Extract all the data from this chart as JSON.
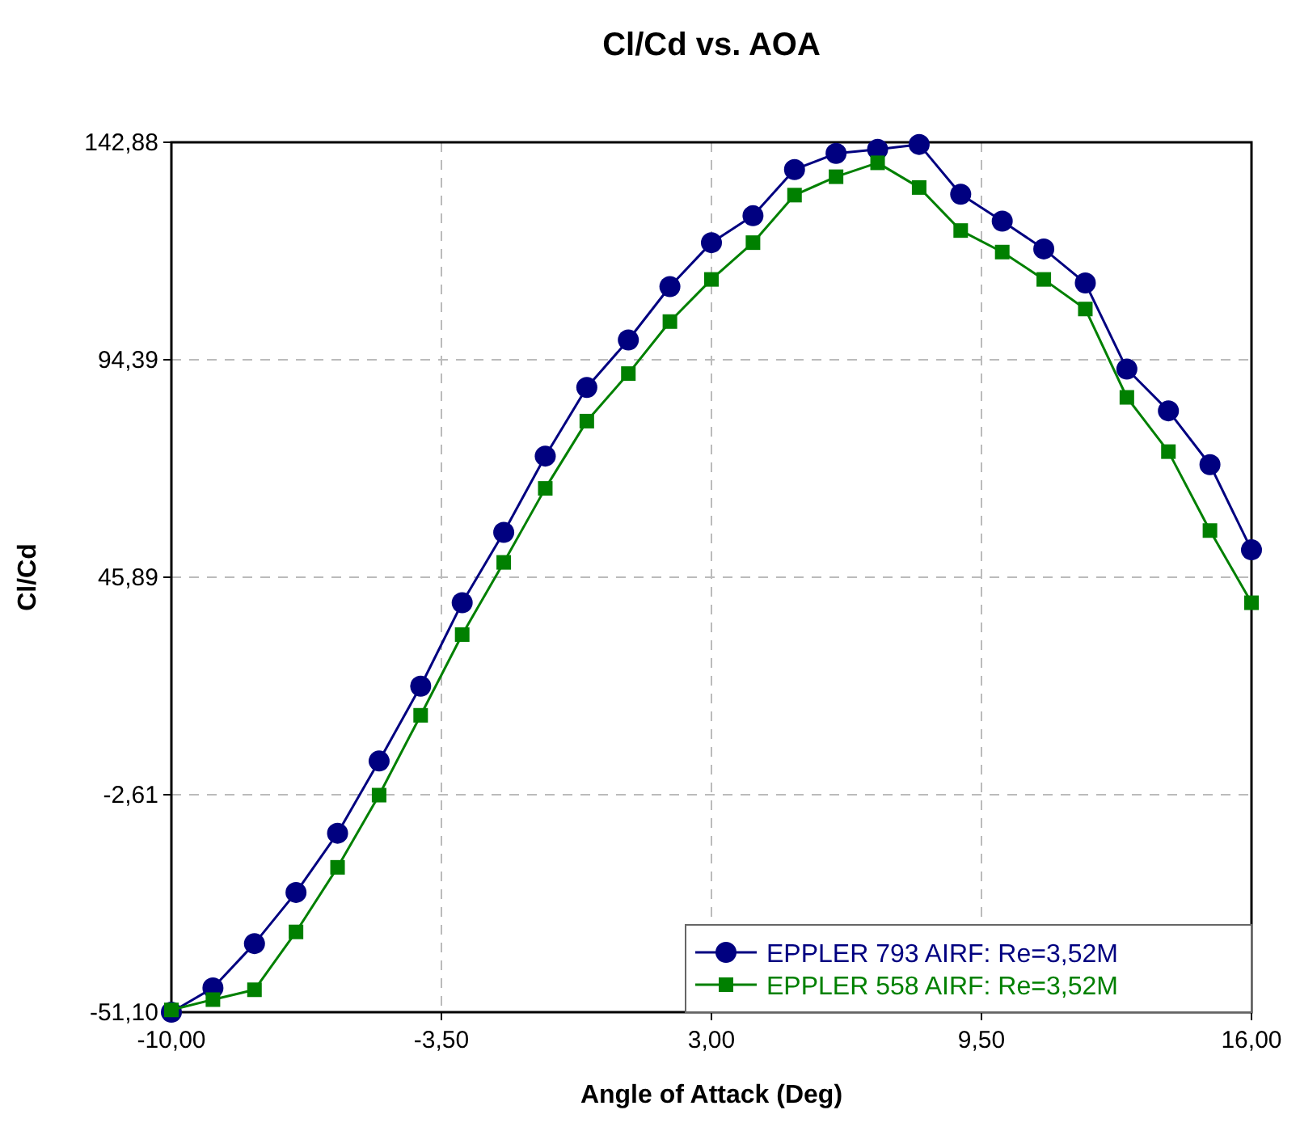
{
  "chart_data": {
    "type": "line",
    "title": "Cl/Cd vs. AOA",
    "xlabel": "Angle of Attack (Deg)",
    "ylabel": "Cl/Cd",
    "x": [
      -10,
      -9,
      -8,
      -7,
      -6,
      -5,
      -4,
      -3,
      -2,
      -1,
      0,
      1,
      2,
      3,
      4,
      5,
      6,
      7,
      8,
      9,
      10,
      11,
      12,
      13,
      14,
      15,
      16
    ],
    "series": [
      {
        "name": "EPPLER 793 AIRF: Re=3,52M",
        "color": "#000080",
        "marker": "circle",
        "values": [
          -51.1,
          -45.7,
          -35.8,
          -24.4,
          -11.2,
          4.9,
          21.6,
          40.2,
          55.9,
          72.9,
          88.2,
          98.8,
          110.7,
          120.5,
          126.5,
          136.8,
          140.4,
          141.3,
          142.4,
          131.3,
          125.3,
          119.1,
          111.5,
          92.3,
          83.0,
          71.0,
          52.0
        ]
      },
      {
        "name": "EPPLER 558 AIRF: Re=3,52M",
        "color": "#008000",
        "marker": "square",
        "values": [
          -50.6,
          -48.3,
          -46.1,
          -33.2,
          -18.8,
          -2.7,
          15.1,
          33.1,
          49.2,
          65.7,
          80.7,
          91.3,
          102.9,
          112.3,
          120.5,
          131.1,
          135.2,
          138.3,
          132.8,
          123.2,
          118.4,
          112.3,
          105.7,
          86.0,
          73.9,
          56.3,
          40.2
        ]
      }
    ],
    "xlim": [
      -10,
      16
    ],
    "xticks": [
      {
        "value": -10,
        "label": "-10,00"
      },
      {
        "value": -3.5,
        "label": "-3,50"
      },
      {
        "value": 3,
        "label": "3,00"
      },
      {
        "value": 9.5,
        "label": "9,50"
      },
      {
        "value": 16,
        "label": "16,00"
      }
    ],
    "ylim": [
      -51.1,
      142.88
    ],
    "yticks": [
      {
        "value": -51.1,
        "label": "-51,10"
      },
      {
        "value": -2.61,
        "label": "-2,61"
      },
      {
        "value": 45.89,
        "label": "45,89"
      },
      {
        "value": 94.39,
        "label": "94,39"
      },
      {
        "value": 142.88,
        "label": "142,88"
      }
    ],
    "grid": true,
    "legend": "bottom right",
    "line_style": "solid"
  }
}
